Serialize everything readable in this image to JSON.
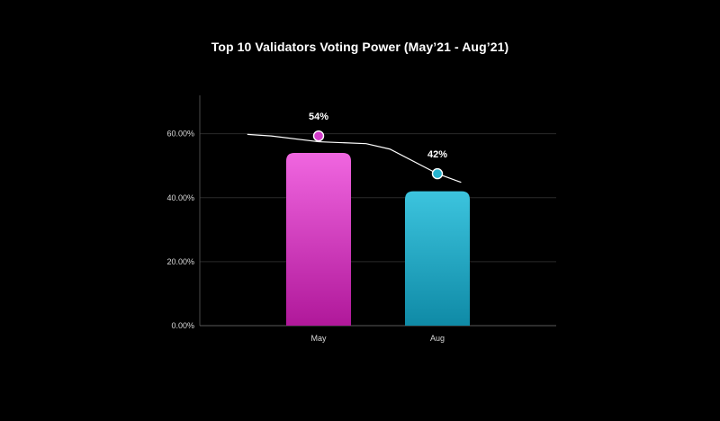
{
  "chart_data": {
    "type": "bar",
    "title": "Top 10 Validators Voting Power (May’21 - Aug’21)",
    "categories": [
      "May",
      "Aug"
    ],
    "values": [
      54,
      42
    ],
    "data_labels": [
      "54%",
      "42%"
    ],
    "bar_colors": [
      {
        "top": "#f066e0",
        "bottom": "#b0189a"
      },
      {
        "top": "#3cc4de",
        "bottom": "#0f8aa6"
      }
    ],
    "marker_colors": [
      "#d23cc8",
      "#27b3cf"
    ],
    "line_color": "#ffffff",
    "ylim": [
      0,
      72
    ],
    "y_ticks": [
      0,
      20,
      40,
      60
    ],
    "y_tick_labels": [
      "0.00%",
      "20.00%",
      "40.00%",
      "60.00%"
    ],
    "grid": true,
    "legend": "none",
    "trend_line": [
      {
        "x": 0.4,
        "y": 59.8
      },
      {
        "x": 0.6,
        "y": 59.3
      },
      {
        "x": 1.0,
        "y": 57.5
      },
      {
        "x": 1.4,
        "y": 56.9
      },
      {
        "x": 1.6,
        "y": 55.2
      },
      {
        "x": 2.0,
        "y": 47.5
      },
      {
        "x": 2.2,
        "y": 44.8
      }
    ],
    "markers": [
      {
        "x": 1.0,
        "y": 59.3,
        "label": "54%"
      },
      {
        "x": 2.0,
        "y": 47.5,
        "label": "42%"
      }
    ]
  }
}
